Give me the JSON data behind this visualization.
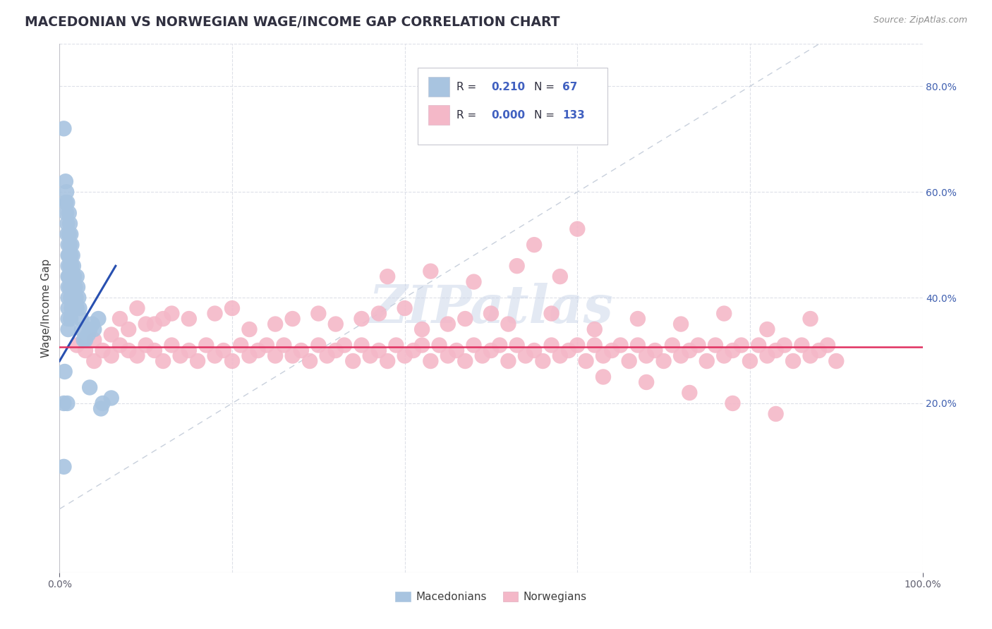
{
  "title": "MACEDONIAN VS NORWEGIAN WAGE/INCOME GAP CORRELATION CHART",
  "source": "Source: ZipAtlas.com",
  "ylabel": "Wage/Income Gap",
  "xlim": [
    0,
    1
  ],
  "ylim": [
    -0.12,
    0.88
  ],
  "right_yticks": [
    0.2,
    0.4,
    0.6,
    0.8
  ],
  "right_yticklabels": [
    "20.0%",
    "40.0%",
    "60.0%",
    "80.0%"
  ],
  "legend_R_mac": "0.210",
  "legend_N_mac": "67",
  "legend_R_nor": "0.000",
  "legend_N_nor": "133",
  "mac_color": "#a8c4e0",
  "nor_color": "#f4b8c8",
  "mac_line_color": "#2850b0",
  "nor_line_color": "#e03060",
  "diagonal_color": "#c8d0dc",
  "watermark_text": "ZIPatlas",
  "background_color": "#ffffff",
  "grid_color": "#dde0e8",
  "mac_scatter_x": [
    0.005,
    0.005,
    0.007,
    0.007,
    0.008,
    0.008,
    0.009,
    0.009,
    0.009,
    0.01,
    0.01,
    0.01,
    0.01,
    0.01,
    0.01,
    0.01,
    0.01,
    0.01,
    0.011,
    0.011,
    0.011,
    0.011,
    0.012,
    0.012,
    0.012,
    0.012,
    0.013,
    0.013,
    0.013,
    0.013,
    0.013,
    0.014,
    0.014,
    0.014,
    0.014,
    0.015,
    0.015,
    0.015,
    0.016,
    0.016,
    0.016,
    0.017,
    0.017,
    0.018,
    0.018,
    0.019,
    0.02,
    0.02,
    0.021,
    0.022,
    0.023,
    0.025,
    0.026,
    0.028,
    0.03,
    0.033,
    0.035,
    0.038,
    0.04,
    0.045,
    0.005,
    0.048,
    0.006,
    0.009,
    0.05,
    0.06,
    0.035
  ],
  "mac_scatter_y": [
    0.72,
    0.08,
    0.62,
    0.58,
    0.6,
    0.56,
    0.58,
    0.54,
    0.52,
    0.5,
    0.48,
    0.46,
    0.44,
    0.42,
    0.4,
    0.38,
    0.36,
    0.34,
    0.56,
    0.52,
    0.48,
    0.44,
    0.54,
    0.5,
    0.46,
    0.42,
    0.52,
    0.48,
    0.44,
    0.4,
    0.36,
    0.5,
    0.46,
    0.42,
    0.38,
    0.48,
    0.44,
    0.4,
    0.46,
    0.42,
    0.38,
    0.44,
    0.4,
    0.42,
    0.38,
    0.4,
    0.44,
    0.38,
    0.42,
    0.4,
    0.38,
    0.36,
    0.34,
    0.32,
    0.32,
    0.33,
    0.34,
    0.35,
    0.34,
    0.36,
    0.2,
    0.19,
    0.26,
    0.2,
    0.2,
    0.21,
    0.23
  ],
  "nor_scatter_x": [
    0.02,
    0.03,
    0.04,
    0.04,
    0.05,
    0.06,
    0.07,
    0.08,
    0.09,
    0.1,
    0.11,
    0.12,
    0.13,
    0.14,
    0.15,
    0.16,
    0.17,
    0.18,
    0.19,
    0.2,
    0.21,
    0.22,
    0.23,
    0.24,
    0.25,
    0.26,
    0.27,
    0.28,
    0.29,
    0.3,
    0.31,
    0.32,
    0.33,
    0.34,
    0.35,
    0.36,
    0.37,
    0.38,
    0.39,
    0.4,
    0.41,
    0.42,
    0.43,
    0.44,
    0.45,
    0.46,
    0.47,
    0.48,
    0.49,
    0.5,
    0.51,
    0.52,
    0.53,
    0.54,
    0.55,
    0.56,
    0.57,
    0.58,
    0.59,
    0.6,
    0.61,
    0.62,
    0.63,
    0.64,
    0.65,
    0.66,
    0.67,
    0.68,
    0.69,
    0.7,
    0.71,
    0.72,
    0.73,
    0.74,
    0.75,
    0.76,
    0.77,
    0.78,
    0.79,
    0.8,
    0.81,
    0.82,
    0.83,
    0.84,
    0.85,
    0.86,
    0.87,
    0.88,
    0.89,
    0.9,
    0.07,
    0.09,
    0.11,
    0.13,
    0.15,
    0.2,
    0.25,
    0.3,
    0.35,
    0.4,
    0.45,
    0.5,
    0.55,
    0.6,
    0.06,
    0.08,
    0.1,
    0.12,
    0.18,
    0.22,
    0.27,
    0.32,
    0.37,
    0.42,
    0.47,
    0.52,
    0.57,
    0.62,
    0.67,
    0.72,
    0.77,
    0.82,
    0.87,
    0.38,
    0.43,
    0.48,
    0.53,
    0.58,
    0.63,
    0.68,
    0.73,
    0.78,
    0.83
  ],
  "nor_scatter_y": [
    0.31,
    0.3,
    0.32,
    0.28,
    0.3,
    0.29,
    0.31,
    0.3,
    0.29,
    0.31,
    0.3,
    0.28,
    0.31,
    0.29,
    0.3,
    0.28,
    0.31,
    0.29,
    0.3,
    0.28,
    0.31,
    0.29,
    0.3,
    0.31,
    0.29,
    0.31,
    0.29,
    0.3,
    0.28,
    0.31,
    0.29,
    0.3,
    0.31,
    0.28,
    0.31,
    0.29,
    0.3,
    0.28,
    0.31,
    0.29,
    0.3,
    0.31,
    0.28,
    0.31,
    0.29,
    0.3,
    0.28,
    0.31,
    0.29,
    0.3,
    0.31,
    0.28,
    0.31,
    0.29,
    0.3,
    0.28,
    0.31,
    0.29,
    0.3,
    0.31,
    0.28,
    0.31,
    0.29,
    0.3,
    0.31,
    0.28,
    0.31,
    0.29,
    0.3,
    0.28,
    0.31,
    0.29,
    0.3,
    0.31,
    0.28,
    0.31,
    0.29,
    0.3,
    0.31,
    0.28,
    0.31,
    0.29,
    0.3,
    0.31,
    0.28,
    0.31,
    0.29,
    0.3,
    0.31,
    0.28,
    0.36,
    0.38,
    0.35,
    0.37,
    0.36,
    0.38,
    0.35,
    0.37,
    0.36,
    0.38,
    0.35,
    0.37,
    0.5,
    0.53,
    0.33,
    0.34,
    0.35,
    0.36,
    0.37,
    0.34,
    0.36,
    0.35,
    0.37,
    0.34,
    0.36,
    0.35,
    0.37,
    0.34,
    0.36,
    0.35,
    0.37,
    0.34,
    0.36,
    0.44,
    0.45,
    0.43,
    0.46,
    0.44,
    0.25,
    0.24,
    0.22,
    0.2,
    0.18
  ],
  "nor_line_y": 0.307
}
